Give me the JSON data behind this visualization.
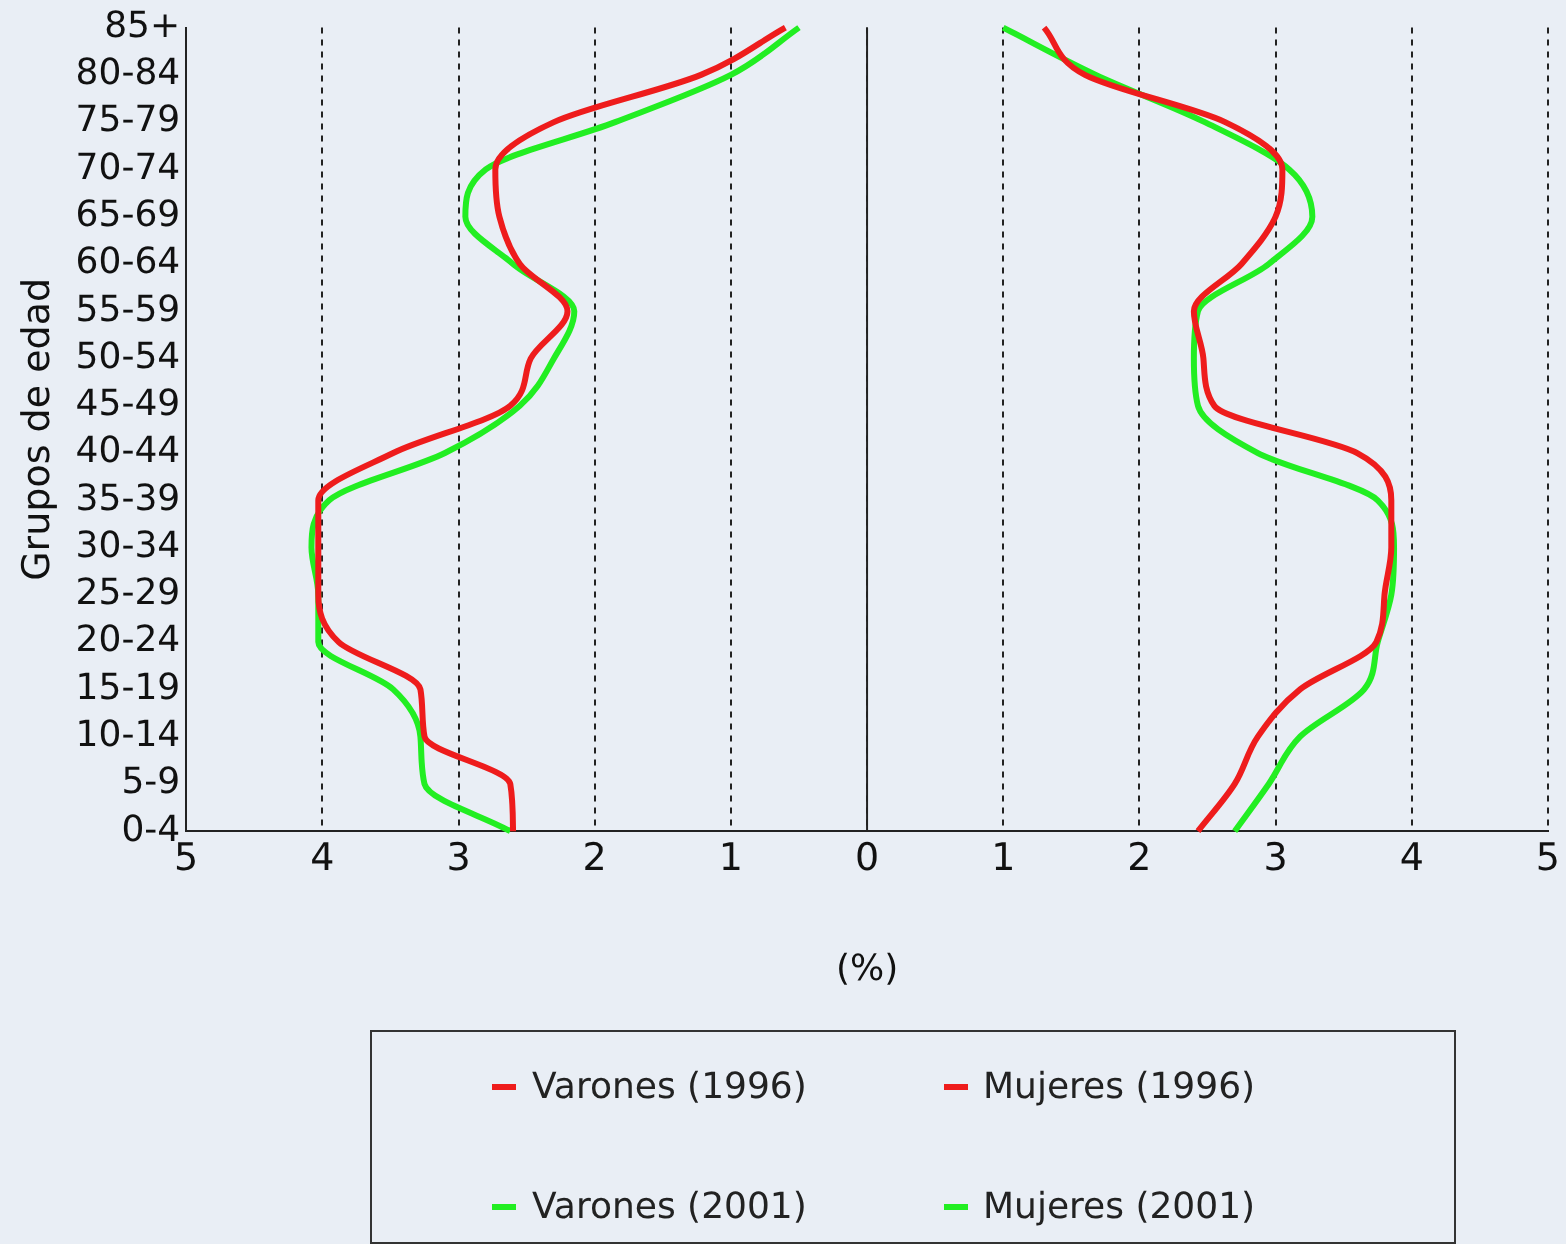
{
  "chart_data": {
    "type": "line",
    "orientation": "horizontal",
    "ylabel": "Grupos de edad",
    "xlabel": "(%)",
    "categories": [
      "85+",
      "80-84",
      "75-79",
      "70-74",
      "65-69",
      "60-64",
      "55-59",
      "50-54",
      "45-49",
      "40-44",
      "35-39",
      "30-34",
      "25-29",
      "20-24",
      "15-19",
      "10-14",
      "5-9",
      "0-4"
    ],
    "xlim": [
      -5,
      5
    ],
    "xticks": [
      {
        "value": -5,
        "label": "5"
      },
      {
        "value": -4,
        "label": "4"
      },
      {
        "value": -3,
        "label": "3"
      },
      {
        "value": -2,
        "label": "2"
      },
      {
        "value": -1,
        "label": "1"
      },
      0,
      1,
      2,
      3,
      4,
      5
    ],
    "grid": "x",
    "legend": "bottom",
    "marker": "none",
    "line_style": "solid",
    "series": [
      {
        "name": "Varones (1996)",
        "color": "#ee1c1c",
        "values": [
          -0.6,
          -1.22,
          -2.3,
          -2.73,
          -2.7,
          -2.55,
          -2.2,
          -2.47,
          -2.62,
          -3.48,
          -4.03,
          -4.03,
          -4.03,
          -3.88,
          -3.28,
          -3.25,
          -2.62,
          -2.6
        ]
      },
      {
        "name": "Mujeres (1996)",
        "color": "#ee1c1c",
        "values": [
          1.3,
          1.6,
          2.63,
          3.05,
          3.0,
          2.75,
          2.4,
          2.47,
          2.55,
          3.6,
          3.85,
          3.85,
          3.8,
          3.74,
          3.18,
          2.87,
          2.7,
          2.43
        ]
      },
      {
        "name": "Varones (2001)",
        "color": "#22ee22",
        "values": [
          -0.5,
          -1.0,
          -1.85,
          -2.8,
          -2.95,
          -2.6,
          -2.15,
          -2.3,
          -2.55,
          -3.1,
          -3.95,
          -4.08,
          -4.03,
          -4.03,
          -3.48,
          -3.28,
          -3.25,
          -2.62
        ]
      },
      {
        "name": "Mujeres (2001)",
        "color": "#22ee22",
        "values": [
          1.0,
          1.68,
          2.48,
          3.1,
          3.27,
          2.95,
          2.43,
          2.4,
          2.43,
          2.87,
          3.75,
          3.87,
          3.85,
          3.75,
          3.65,
          3.18,
          2.95,
          2.7
        ]
      }
    ]
  }
}
